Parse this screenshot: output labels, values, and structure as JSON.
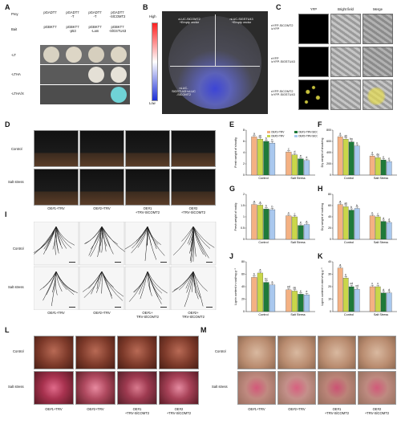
{
  "panel_labels": {
    "A": "A",
    "B": "B",
    "C": "C",
    "D": "D",
    "E": "E",
    "F": "F",
    "G": "G",
    "H": "H",
    "I": "I",
    "J": "J",
    "K": "K",
    "L": "L",
    "M": "M"
  },
  "panelA": {
    "row_labels": [
      "Prey",
      "Bait",
      "-LT",
      "-LTHA",
      "-LTHA/X"
    ],
    "prey": [
      "pGADT7",
      "pGADT7\n-T",
      "pGADT7\n-T",
      "pGADT7\n-SlCOMT2"
    ],
    "bait": [
      "pGBKT7",
      "pGBKT7\n-p53",
      "pGBKT7\n-Lam",
      "pGBKT7\n-SlGSTU43"
    ]
  },
  "panelB": {
    "scale_high": "High",
    "scale_low": "Low",
    "quadrants": [
      "cLUC-SlCOMT2\n+Empty vector",
      "nLUC-SlGSTU43\n+Empty vector",
      "nLUC-\nSlGSTU43+cLUC\n-SlCOMT2"
    ]
  },
  "panelC": {
    "columns": [
      "YFP",
      "Bright field",
      "Merge"
    ],
    "rows": [
      "nYFP-SlCOMT2\n/cYFP",
      "nYFP\n/cYFP-SlGSTU43",
      "nYFP-SlCOMT2\n/cYFP-SlGSTU43"
    ]
  },
  "panelD": {
    "rows": [
      "Control",
      "Salt stress"
    ],
    "columns": [
      "OE#1+TRV",
      "OE#2+TRV",
      "OE#1\n+TRV-SlCOMT2",
      "OE#2\n+TRV-SlCOMT2"
    ]
  },
  "panelI": {
    "rows": [
      "Control",
      "Salt stress"
    ],
    "columns": [
      "OE#1+TRV",
      "OE#2+TRV",
      "OE#1+\nTRV-SlCOMT2",
      "OE#2+\nTRV-SlCOMT2"
    ]
  },
  "panelL": {
    "rows": [
      "Control",
      "Salt stress"
    ],
    "columns": [
      "OE#1+TRV",
      "OE#2+TRV",
      "OE#1\n+TRV-SlCOMT2",
      "OE#2\n+TRV-SlCOMT2"
    ]
  },
  "panelM": {
    "rows": [
      "Control",
      "Salt stress"
    ],
    "columns": [
      "OE#1+TRV",
      "OE#2+TRV",
      "OE#1\n+TRV-SlCOMT2",
      "OE#2\n+TRV-SlCOMT2"
    ]
  },
  "colors": {
    "s1": "#f4b183",
    "s2": "#c9d64a",
    "s3": "#1f7a3a",
    "s4": "#a9c8ee",
    "yfp": "#c8c23c",
    "cbar_top": "#ff2020",
    "cbar_bottom": "#1c2fd6"
  },
  "chart_data": [
    {
      "id": "E",
      "type": "bar",
      "ylabel": "Fresh weight of shoot/g",
      "categories": [
        "Control",
        "Salt Stress"
      ],
      "ylim": [
        0,
        8
      ],
      "yticks": [
        0,
        2,
        4,
        6,
        8
      ],
      "legend": [
        "OE#1+TRV",
        "OE#2+TRV",
        "OE#1+TRV-SlCOMT2",
        "OE#2+TRV-SlCOMT2"
      ],
      "series": [
        {
          "name": "OE#1+TRV",
          "values": [
            6.8,
            4.1
          ]
        },
        {
          "name": "OE#2+TRV",
          "values": [
            6.4,
            3.6
          ]
        },
        {
          "name": "OE#1+TRV-SlCOMT2",
          "values": [
            6.0,
            2.9
          ]
        },
        {
          "name": "OE#2+TRV-SlCOMT2",
          "values": [
            5.7,
            2.6
          ]
        }
      ],
      "letters": [
        [
          "a",
          "ab",
          "b",
          "b"
        ],
        [
          "c",
          "d",
          "e",
          "e"
        ]
      ]
    },
    {
      "id": "F",
      "type": "bar",
      "ylabel": "Dry weight of shoot/mg",
      "categories": [
        "Control",
        "Salt Stress"
      ],
      "ylim": [
        0,
        800
      ],
      "yticks": [
        0,
        200,
        400,
        600,
        800
      ],
      "series": [
        {
          "values": [
            680,
            340
          ]
        },
        {
          "values": [
            640,
            310
          ]
        },
        {
          "values": [
            590,
            270
          ]
        },
        {
          "values": [
            520,
            240
          ]
        }
      ],
      "letters": [
        [
          "a",
          "ab",
          "bc",
          "c"
        ],
        [
          "d",
          "de",
          "e",
          "e"
        ]
      ]
    },
    {
      "id": "G",
      "type": "bar",
      "ylabel": "Fresh weight of root/g",
      "categories": [
        "Control",
        "Salt Stress"
      ],
      "ylim": [
        0,
        2.0
      ],
      "yticks": [
        0,
        0.5,
        1.0,
        1.5,
        2.0
      ],
      "series": [
        {
          "values": [
            1.55,
            1.05
          ]
        },
        {
          "values": [
            1.52,
            1.0
          ]
        },
        {
          "values": [
            1.35,
            0.62
          ]
        },
        {
          "values": [
            1.32,
            0.66
          ]
        }
      ],
      "letters": [
        [
          "a",
          "a",
          "b",
          "b"
        ],
        [
          "c",
          "c",
          "e",
          "e"
        ]
      ]
    },
    {
      "id": "H",
      "type": "bar",
      "ylabel": "Dry weight of root/mg",
      "categories": [
        "Control",
        "Salt Stress"
      ],
      "ylim": [
        0,
        80
      ],
      "yticks": [
        0,
        20,
        40,
        60,
        80
      ],
      "series": [
        {
          "values": [
            62,
            42
          ]
        },
        {
          "values": [
            58,
            40
          ]
        },
        {
          "values": [
            52,
            32
          ]
        },
        {
          "values": [
            55,
            30
          ]
        }
      ],
      "letters": [
        [
          "a",
          "ab",
          "b",
          "b"
        ],
        [
          "c",
          "c",
          "d",
          "d"
        ]
      ]
    },
    {
      "id": "J",
      "type": "bar",
      "ylabel": "Lignin content in root/mg g⁻¹",
      "categories": [
        "Control",
        "Salt Stress"
      ],
      "ylim": [
        0,
        80
      ],
      "yticks": [
        0,
        20,
        40,
        60,
        80
      ],
      "series": [
        {
          "values": [
            55,
            35
          ]
        },
        {
          "values": [
            62,
            33
          ]
        },
        {
          "values": [
            47,
            28
          ]
        },
        {
          "values": [
            43,
            27
          ]
        }
      ],
      "letters": [
        [
          "b",
          "a",
          "bc",
          "c"
        ],
        [
          "cd",
          "de",
          "e",
          "e"
        ]
      ]
    },
    {
      "id": "K",
      "type": "bar",
      "ylabel": "Lignin content in stem/mg g⁻¹",
      "categories": [
        "Control",
        "Salt Stress"
      ],
      "ylim": [
        0,
        40
      ],
      "yticks": [
        0,
        10,
        20,
        30,
        40
      ],
      "series": [
        {
          "values": [
            35,
            20
          ]
        },
        {
          "values": [
            27,
            20
          ]
        },
        {
          "values": [
            20,
            15
          ]
        },
        {
          "values": [
            18,
            15
          ]
        }
      ],
      "letters": [
        [
          "a",
          "b",
          "cd",
          "cd"
        ],
        [
          "c",
          "c",
          "d",
          "d"
        ]
      ]
    }
  ]
}
